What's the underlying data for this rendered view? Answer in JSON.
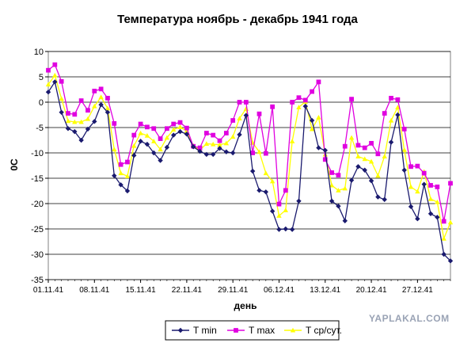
{
  "chart_data": {
    "type": "line",
    "title": "Температура ноябрь  - декабрь 1941 года",
    "xlabel": "день",
    "ylabel": "0С",
    "ylim": [
      -35,
      10
    ],
    "yticks": [
      10,
      5,
      0,
      -5,
      -10,
      -15,
      -20,
      -25,
      -30,
      -35
    ],
    "grid": true,
    "legend_position": "bottom",
    "x_tick_labels": [
      {
        "index": 0,
        "label": "01.11.41"
      },
      {
        "index": 7,
        "label": "08.11.41"
      },
      {
        "index": 14,
        "label": "15.11.41"
      },
      {
        "index": 21,
        "label": "22.11.41"
      },
      {
        "index": 28,
        "label": "29.11.41"
      },
      {
        "index": 35,
        "label": "06.12.41"
      },
      {
        "index": 42,
        "label": "13.12.41"
      },
      {
        "index": 49,
        "label": "20.12.41"
      },
      {
        "index": 56,
        "label": "27.12.41"
      }
    ],
    "series": [
      {
        "name": "T min",
        "color": "#1a1a6e",
        "marker": "diamond",
        "values": [
          2,
          4,
          -2,
          -5.2,
          -5.8,
          -7.5,
          -5.3,
          -3.8,
          -0.5,
          -2,
          -14.5,
          -16.3,
          -17.5,
          -10.5,
          -7.7,
          -8.3,
          -10,
          -11.5,
          -8.9,
          -6.5,
          -5.8,
          -6.3,
          -8.8,
          -9.7,
          -10.3,
          -10.3,
          -9.1,
          -9.8,
          -10,
          -6.4,
          -2.6,
          -13.6,
          -17.4,
          -17.7,
          -21.5,
          -25.1,
          -25,
          -25.1,
          -19.5,
          -0.8,
          -3.6,
          -9,
          -9.5,
          -19.5,
          -20.5,
          -23.4,
          -15.4,
          -12.7,
          -13.4,
          -15.5,
          -18.7,
          -19.2,
          -7.9,
          -2.5,
          -13.4,
          -20.6,
          -23,
          -16.2,
          -22,
          -22.7,
          -30,
          -31.3
        ]
      },
      {
        "name": "T max",
        "color": "#e000e0",
        "marker": "square",
        "values": [
          6.3,
          7.4,
          4.1,
          -2.2,
          -2.4,
          0.3,
          -1.6,
          2.2,
          2.6,
          0.8,
          -4.2,
          -12.3,
          -11.8,
          -6.5,
          -4.3,
          -4.9,
          -5.2,
          -7.2,
          -5.2,
          -4.3,
          -4,
          -5.1,
          -8.7,
          -9,
          -6.1,
          -6.5,
          -7.6,
          -6.1,
          -3.6,
          0,
          0,
          -10,
          -2.3,
          -10.1,
          -0.9,
          -20.1,
          -17.4,
          0,
          0.9,
          0.4,
          2.1,
          4,
          -11.3,
          -13.9,
          -14.4,
          -8.7,
          0.6,
          -8.5,
          -9,
          -8.1,
          -10.2,
          -2.2,
          0.8,
          0.5,
          -5.3,
          -12.7,
          -12.6,
          -14,
          -16.4,
          -16.7,
          -23.5,
          -16
        ]
      },
      {
        "name": "T ср/сут.",
        "color": "#ffff00",
        "marker": "triangle",
        "values": [
          3.5,
          5.3,
          0.7,
          -3.7,
          -3.9,
          -3.9,
          -3.3,
          -0.8,
          1,
          -1.2,
          -9.3,
          -14,
          -14.6,
          -8.6,
          -6.1,
          -6.6,
          -7.7,
          -9.3,
          -7,
          -5.4,
          -4.9,
          -5.7,
          -8.6,
          -9.4,
          -8.2,
          -8.3,
          -8.4,
          -8.1,
          -6.8,
          -3.2,
          -1.3,
          -8,
          -9.8,
          -14,
          -15.6,
          -22.4,
          -21.3,
          -7.7,
          -1,
          0.1,
          -5.3,
          -3,
          -10.3,
          -16.4,
          -17.4,
          -17,
          -7,
          -10.7,
          -11.2,
          -11.7,
          -14.5,
          -10.7,
          -3.6,
          -1,
          -9.4,
          -16.7,
          -17.6,
          -13.7,
          -19.1,
          -19.7,
          -26.9,
          -23.7
        ]
      }
    ]
  },
  "watermark": "YAPLAKAL.COM",
  "colors": {
    "background": "#ffffff",
    "plot_background": "#ffffff",
    "gridline": "#000000",
    "axis": "#808080"
  }
}
